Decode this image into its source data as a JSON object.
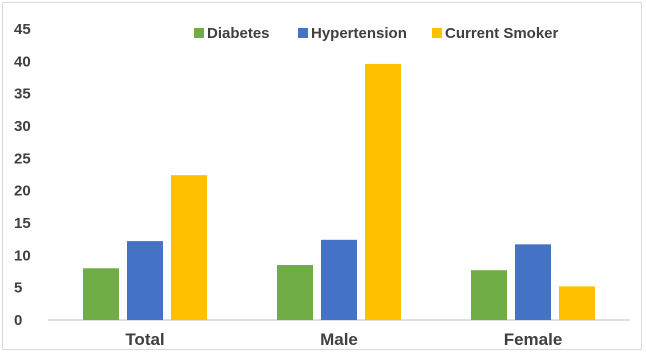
{
  "chart_data": {
    "type": "bar",
    "categories": [
      "Total",
      "Male",
      "Female"
    ],
    "series": [
      {
        "name": "Diabetes",
        "values": [
          8.0,
          8.5,
          7.7
        ],
        "color": "#70ad47"
      },
      {
        "name": "Hypertension",
        "values": [
          12.2,
          12.4,
          11.7
        ],
        "color": "#4472c4"
      },
      {
        "name": "Current Smoker",
        "values": [
          22.4,
          39.6,
          5.2
        ],
        "color": "#ffc000"
      }
    ],
    "ylim": [
      0,
      45
    ],
    "yticks": [
      0,
      5,
      10,
      15,
      20,
      25,
      30,
      35,
      40,
      45
    ],
    "grid": false,
    "legend_position": "top-right"
  }
}
